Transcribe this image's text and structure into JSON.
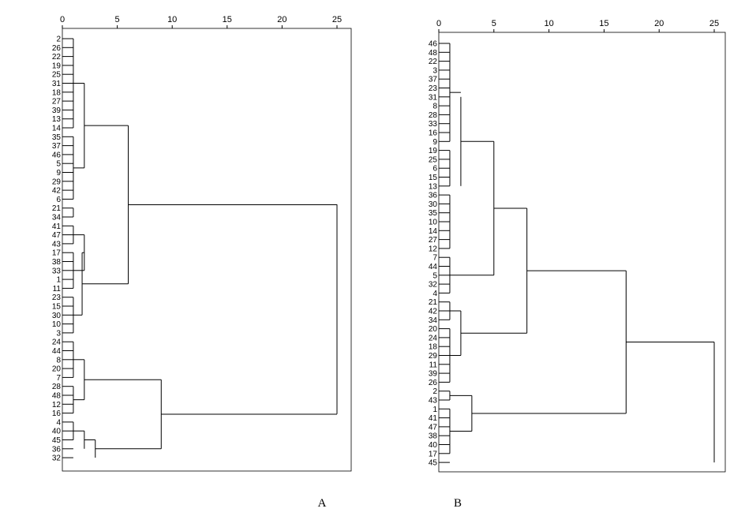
{
  "panels": [
    {
      "label": "A",
      "axis_ticks": [
        0,
        5,
        10,
        15,
        20,
        25
      ],
      "leaves": [
        "2",
        "26",
        "22",
        "19",
        "25",
        "31",
        "18",
        "27",
        "39",
        "13",
        "14",
        "35",
        "37",
        "46",
        "5",
        "9",
        "29",
        "42",
        "6",
        "21",
        "34",
        "41",
        "47",
        "43",
        "17",
        "38",
        "33",
        "1",
        "11",
        "23",
        "15",
        "30",
        "10",
        "3",
        "24",
        "44",
        "8",
        "20",
        "7",
        "28",
        "48",
        "12",
        "16",
        "4",
        "40",
        "45",
        "36",
        "32"
      ],
      "merges": [
        {
          "rows": [
            0,
            10
          ],
          "d": 1.0
        },
        {
          "rows": [
            11,
            18
          ],
          "d": 1.0
        },
        {
          "rows": [
            19,
            20
          ],
          "d": 1.0
        },
        {
          "rows": [
            21,
            23
          ],
          "d": 1.0
        },
        {
          "rows": [
            24,
            28
          ],
          "d": 1.0
        },
        {
          "rows": [
            29,
            33
          ],
          "d": 1.0
        },
        {
          "rows": [
            34,
            38
          ],
          "d": 1.0
        },
        {
          "rows": [
            39,
            42
          ],
          "d": 1.0
        },
        {
          "rows": [
            43,
            45
          ],
          "d": 1.0
        },
        {
          "rows": [
            5,
            14.5
          ],
          "d": 2.0
        },
        {
          "rows": [
            22,
            26
          ],
          "d": 2.0
        },
        {
          "rows": [
            24,
            31
          ],
          "d": 1.8
        },
        {
          "rows": [
            36,
            40.5
          ],
          "d": 2.0
        },
        {
          "rows": [
            44,
            46
          ],
          "d": 2.0
        },
        {
          "rows": [
            45,
            47
          ],
          "d": 3.0
        },
        {
          "rows": [
            9.75,
            27.5
          ],
          "d": 6.0
        },
        {
          "rows": [
            38.25,
            46
          ],
          "d": 9.0
        },
        {
          "rows": [
            18.6,
            42.1
          ],
          "d": 25.0
        }
      ]
    },
    {
      "label": "B",
      "axis_ticks": [
        0,
        5,
        10,
        15,
        20,
        25
      ],
      "leaves": [
        "46",
        "48",
        "22",
        "3",
        "37",
        "23",
        "31",
        "8",
        "28",
        "33",
        "16",
        "9",
        "19",
        "25",
        "6",
        "15",
        "13",
        "36",
        "30",
        "35",
        "10",
        "14",
        "27",
        "12",
        "7",
        "44",
        "5",
        "32",
        "4",
        "21",
        "42",
        "34",
        "20",
        "24",
        "18",
        "29",
        "11",
        "39",
        "26",
        "2",
        "43",
        "1",
        "41",
        "47",
        "38",
        "40",
        "17",
        "45"
      ],
      "merges": [
        {
          "rows": [
            0,
            11
          ],
          "d": 1.0
        },
        {
          "rows": [
            12,
            16
          ],
          "d": 1.0
        },
        {
          "rows": [
            17,
            23
          ],
          "d": 1.0
        },
        {
          "rows": [
            24,
            28
          ],
          "d": 1.0
        },
        {
          "rows": [
            29,
            31
          ],
          "d": 1.0
        },
        {
          "rows": [
            32,
            38
          ],
          "d": 1.0
        },
        {
          "rows": [
            39,
            40
          ],
          "d": 1.0
        },
        {
          "rows": [
            41,
            46
          ],
          "d": 1.0
        },
        {
          "rows": [
            6,
            16
          ],
          "d": 2.0
        },
        {
          "rows": [
            11,
            26
          ],
          "d": 5.0
        },
        {
          "rows": [
            30,
            35
          ],
          "d": 2.0
        },
        {
          "rows": [
            18.5,
            32.5
          ],
          "d": 8.0
        },
        {
          "rows": [
            39.5,
            43.5
          ],
          "d": 3.0
        },
        {
          "rows": [
            25.5,
            41.5
          ],
          "d": 17.0
        },
        {
          "rows": [
            33.5,
            47
          ],
          "d": 25.0
        }
      ]
    }
  ]
}
